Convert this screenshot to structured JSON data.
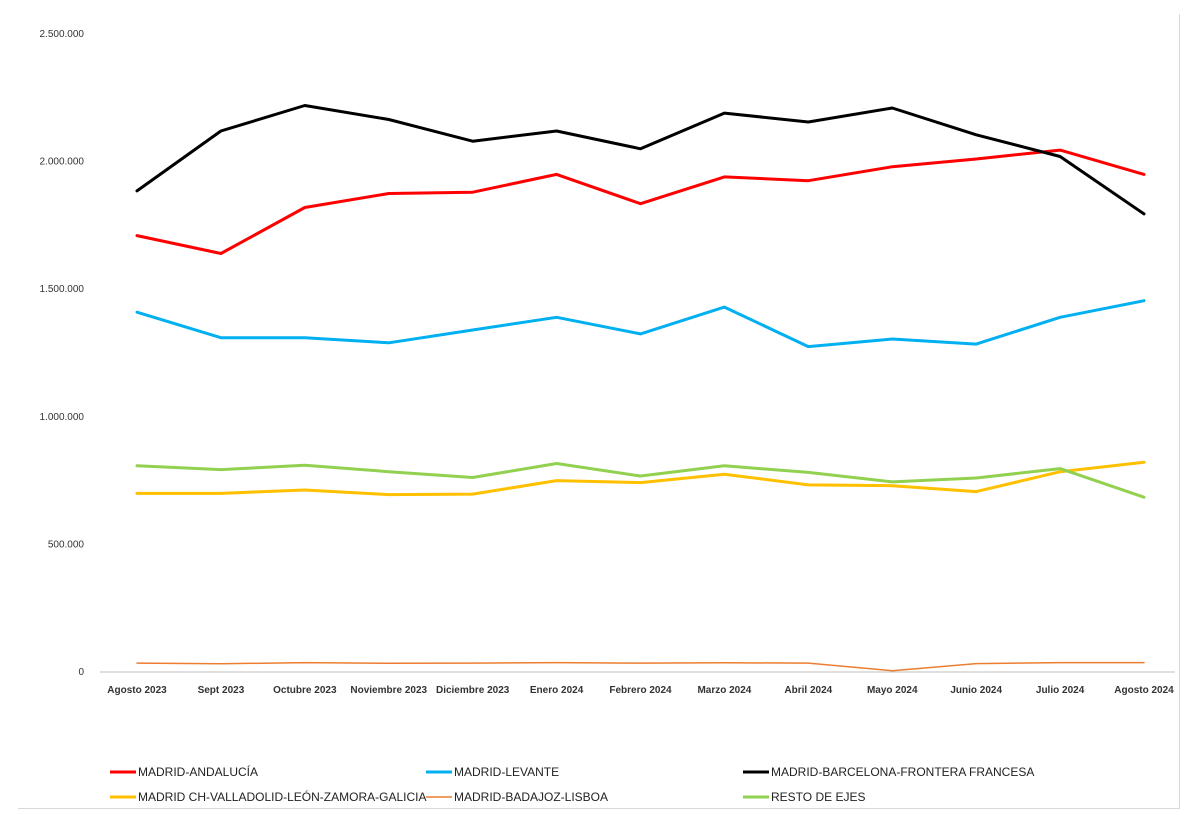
{
  "chart_data": {
    "type": "line",
    "title": "",
    "xlabel": "",
    "ylabel": "",
    "ylim": [
      0,
      2500000
    ],
    "yticks": [
      0,
      500000,
      1000000,
      1500000,
      2000000,
      2500000
    ],
    "ytick_labels": [
      "0",
      "500.000",
      "1.000.000",
      "1.500.000",
      "2.000.000",
      "2.500.000"
    ],
    "grid": false,
    "legend_position": "bottom",
    "categories": [
      "Agosto 2023",
      "Sept 2023",
      "Octubre 2023",
      "Noviembre 2023",
      "Diciembre 2023",
      "Enero 2024",
      "Febrero 2024",
      "Marzo 2024",
      "Abril 2024",
      "Mayo 2024",
      "Junio 2024",
      "Julio 2024",
      "Agosto 2024"
    ],
    "series": [
      {
        "name": "MADRID-ANDALUCÍA",
        "color": "#ff0000",
        "width": 3,
        "values": [
          1710000,
          1640000,
          1820000,
          1875000,
          1880000,
          1950000,
          1835000,
          1940000,
          1925000,
          1980000,
          2010000,
          2045000,
          1950000
        ]
      },
      {
        "name": "MADRID-LEVANTE",
        "color": "#00b0f0",
        "width": 3,
        "values": [
          1410000,
          1310000,
          1310000,
          1290000,
          1340000,
          1390000,
          1325000,
          1430000,
          1275000,
          1305000,
          1285000,
          1390000,
          1455000
        ]
      },
      {
        "name": "MADRID-BARCELONA-FRONTERA FRANCESA",
        "color": "#000000",
        "width": 3,
        "values": [
          1885000,
          2120000,
          2220000,
          2165000,
          2080000,
          2120000,
          2050000,
          2190000,
          2155000,
          2210000,
          2105000,
          2020000,
          1795000
        ]
      },
      {
        "name": "MADRID CH-VALLADOLID-LEÓN-ZAMORA-GALICIA",
        "color": "#ffc000",
        "width": 3,
        "values": [
          700000,
          700000,
          713000,
          695000,
          697000,
          750000,
          742000,
          775000,
          733000,
          730000,
          707000,
          785000,
          822000
        ]
      },
      {
        "name": "MADRID-BADAJOZ-LISBOA",
        "color": "#ed7d31",
        "width": 1.5,
        "values": [
          35000,
          32000,
          37000,
          34000,
          35000,
          37000,
          35000,
          36000,
          35000,
          5000,
          33000,
          37000,
          37000
        ]
      },
      {
        "name": "RESTO DE EJES",
        "color": "#92d050",
        "width": 3,
        "values": [
          808000,
          793000,
          810000,
          785000,
          762000,
          817000,
          768000,
          808000,
          782000,
          745000,
          760000,
          797000,
          685000
        ]
      }
    ]
  }
}
